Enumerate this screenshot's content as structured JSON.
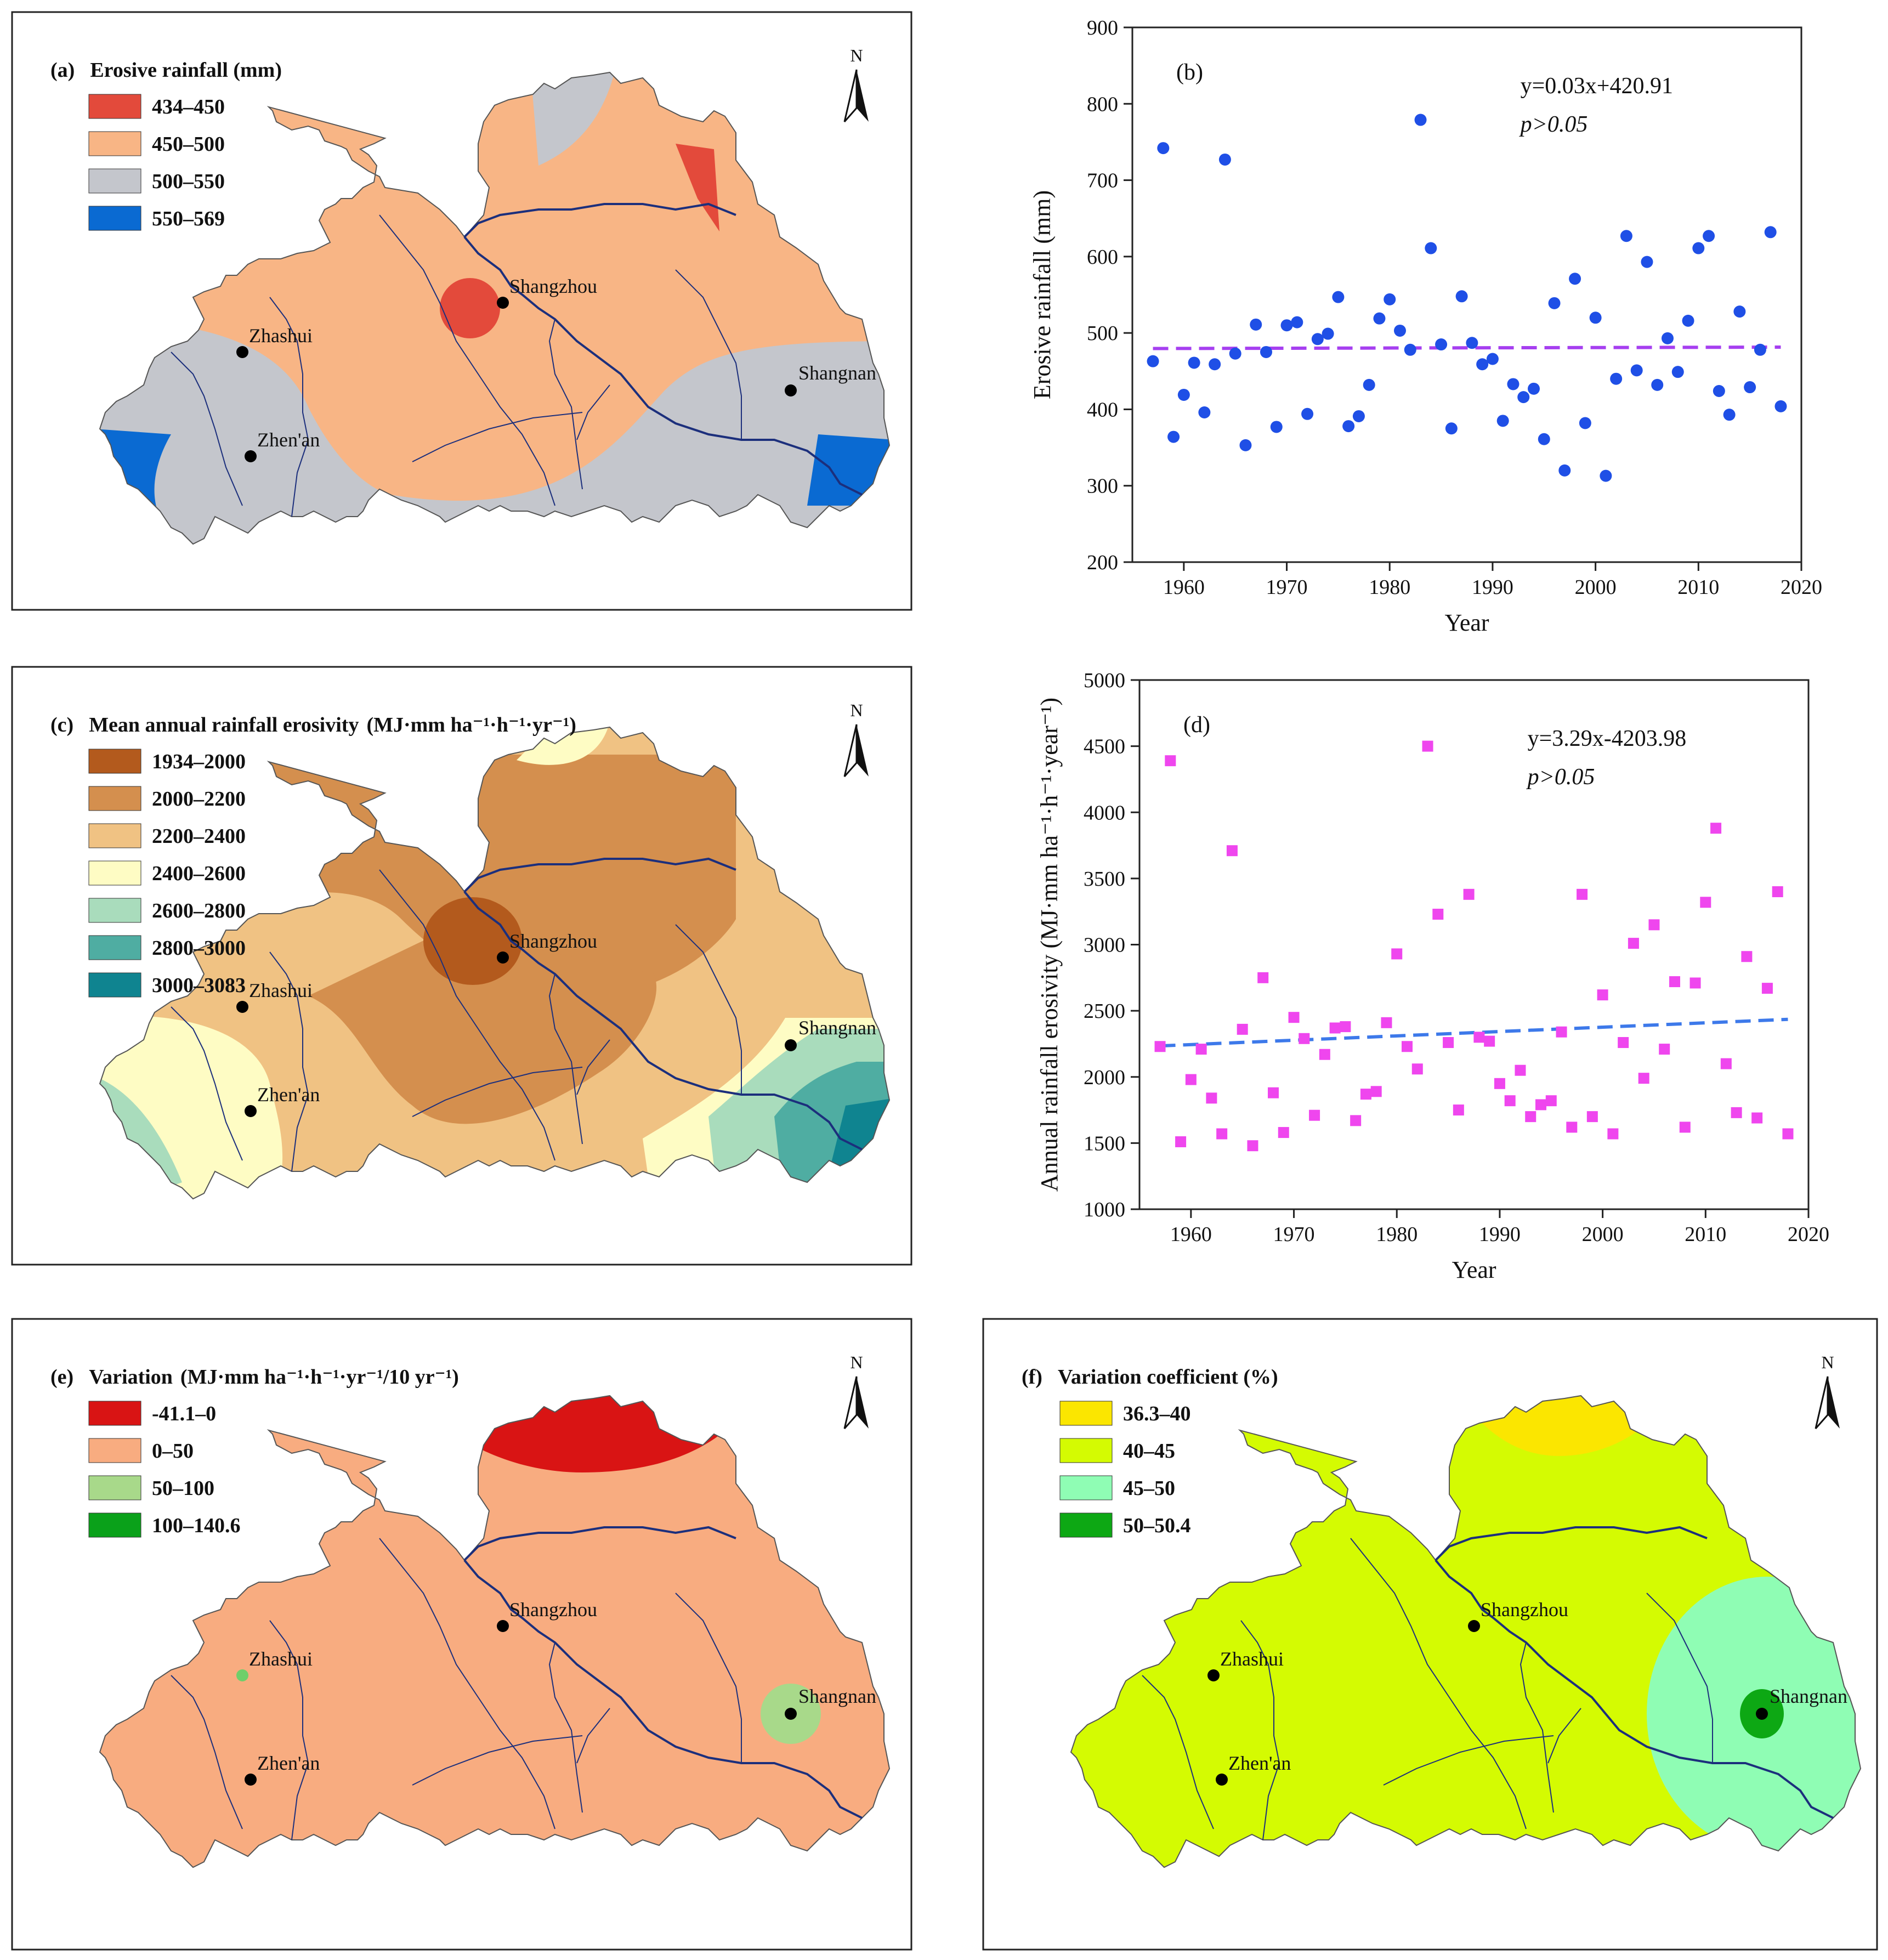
{
  "maps": [
    {
      "panel": "(a)",
      "title": "Erosive rainfall (mm)",
      "unit_title": "",
      "legend": [
        {
          "label": "434–450",
          "color": "#e34a3b"
        },
        {
          "label": "450–500",
          "color": "#f8b585"
        },
        {
          "label": "500–550",
          "color": "#c4c6cc"
        },
        {
          "label": "550–569",
          "color": "#0a6ad2"
        }
      ],
      "cities": [
        "Shangzhou",
        "Zhashui",
        "Zhen'an",
        "Shangnan"
      ],
      "north": "N"
    },
    {
      "panel": "(c)",
      "title": "Mean annual rainfall erosivity",
      "unit_title": "(MJ·mm ha⁻¹·h⁻¹·yr⁻¹)",
      "legend": [
        {
          "label": "1934–2000",
          "color": "#b35a1d"
        },
        {
          "label": "2000–2200",
          "color": "#d48f4e"
        },
        {
          "label": "2200–2400",
          "color": "#f0c283"
        },
        {
          "label": "2400–2600",
          "color": "#fefcc4"
        },
        {
          "label": "2600–2800",
          "color": "#a9dcbc"
        },
        {
          "label": "2800–3000",
          "color": "#4fada2"
        },
        {
          "label": "3000–3083",
          "color": "#0f8490"
        }
      ],
      "cities": [
        "Shangzhou",
        "Zhashui",
        "Zhen'an",
        "Shangnan"
      ],
      "north": "N"
    },
    {
      "panel": "(e)",
      "title": "Variation",
      "unit_title": "(MJ·mm ha⁻¹·h⁻¹·yr⁻¹/10 yr⁻¹)",
      "legend": [
        {
          "label": "-41.1–0",
          "color": "#d91414"
        },
        {
          "label": "0–50",
          "color": "#f8ac80"
        },
        {
          "label": "50–100",
          "color": "#a8d98a"
        },
        {
          "label": "100–140.6",
          "color": "#0aa11a"
        }
      ],
      "cities": [
        "Shangzhou",
        "Zhashui",
        "Zhen'an",
        "Shangnan"
      ],
      "north": "N"
    },
    {
      "panel": "(f)",
      "title": "Variation coefficient (%)",
      "unit_title": "",
      "legend": [
        {
          "label": "36.3–40",
          "color": "#fbe600"
        },
        {
          "label": "40–45",
          "color": "#d4fb02"
        },
        {
          "label": "45–50",
          "color": "#8ffdb4"
        },
        {
          "label": "50–50.4",
          "color": "#0da814"
        }
      ],
      "cities": [
        "Shangzhou",
        "Zhashui",
        "Zhen'an",
        "Shangnan"
      ],
      "north": "N"
    }
  ],
  "chart_data": [
    {
      "panel": "(b)",
      "type": "scatter",
      "xlabel": "Year",
      "ylabel": "Erosive rainfall (mm)",
      "xlim": [
        1955,
        2020
      ],
      "ylim": [
        200,
        900
      ],
      "xticks": [
        1960,
        1970,
        1980,
        1990,
        2000,
        2010,
        2020
      ],
      "yticks": [
        200,
        300,
        400,
        500,
        600,
        700,
        800,
        900
      ],
      "marker": "circle",
      "marker_color": "#1f4fe6",
      "trend_color": "#a63ff0",
      "equation": "y=0.03x+420.91",
      "significance": "p>0.05",
      "trend": {
        "slope": 0.03,
        "intercept": 420.91
      },
      "x": [
        1957,
        1958,
        1959,
        1960,
        1961,
        1962,
        1963,
        1964,
        1965,
        1966,
        1967,
        1968,
        1969,
        1970,
        1971,
        1972,
        1973,
        1974,
        1975,
        1976,
        1977,
        1978,
        1979,
        1980,
        1981,
        1982,
        1983,
        1984,
        1985,
        1986,
        1987,
        1988,
        1989,
        1990,
        1991,
        1992,
        1993,
        1994,
        1995,
        1996,
        1997,
        1998,
        1999,
        2000,
        2001,
        2002,
        2003,
        2004,
        2005,
        2006,
        2007,
        2008,
        2009,
        2010,
        2011,
        2012,
        2013,
        2014,
        2015,
        2016,
        2017,
        2018
      ],
      "y": [
        463,
        742,
        364,
        419,
        461,
        396,
        459,
        727,
        473,
        353,
        511,
        475,
        377,
        510,
        514,
        394,
        492,
        499,
        547,
        378,
        391,
        432,
        519,
        544,
        503,
        478,
        779,
        611,
        485,
        375,
        548,
        487,
        459,
        466,
        385,
        433,
        416,
        427,
        361,
        539,
        320,
        571,
        382,
        520,
        313,
        440,
        627,
        451,
        593,
        432,
        493,
        449,
        516,
        611,
        627,
        424,
        393,
        528,
        429,
        478,
        632,
        404
      ]
    },
    {
      "panel": "(d)",
      "type": "scatter",
      "xlabel": "Year",
      "ylabel": "Annual rainfall erosivity (MJ·mm ha⁻¹·h⁻¹·year⁻¹)",
      "xlim": [
        1955,
        2020
      ],
      "ylim": [
        1000,
        5000
      ],
      "xticks": [
        1960,
        1970,
        1980,
        1990,
        2000,
        2010,
        2020
      ],
      "yticks": [
        1000,
        1500,
        2000,
        2500,
        3000,
        3500,
        4000,
        4500,
        5000
      ],
      "marker": "square",
      "marker_color": "#ef46ee",
      "trend_color": "#3d79ea",
      "equation": "y=3.29x-4203.98",
      "significance": "p>0.05",
      "trend": {
        "slope": 3.29,
        "intercept": -4203.98
      },
      "x": [
        1957,
        1958,
        1959,
        1960,
        1961,
        1962,
        1963,
        1964,
        1965,
        1966,
        1967,
        1968,
        1969,
        1970,
        1971,
        1972,
        1973,
        1974,
        1975,
        1976,
        1977,
        1978,
        1979,
        1980,
        1981,
        1982,
        1983,
        1984,
        1985,
        1986,
        1987,
        1988,
        1989,
        1990,
        1991,
        1992,
        1993,
        1994,
        1995,
        1996,
        1997,
        1998,
        1999,
        2000,
        2001,
        2002,
        2003,
        2004,
        2005,
        2006,
        2007,
        2008,
        2009,
        2010,
        2011,
        2012,
        2013,
        2014,
        2015,
        2016,
        2017,
        2018
      ],
      "y": [
        2230,
        4390,
        1510,
        1980,
        2210,
        1840,
        1570,
        3710,
        2360,
        1480,
        2750,
        1880,
        1580,
        2450,
        2290,
        1710,
        2170,
        2370,
        2380,
        1670,
        1870,
        1890,
        2410,
        2930,
        2230,
        2060,
        4500,
        3230,
        2260,
        1750,
        3380,
        2300,
        2270,
        1950,
        1820,
        2050,
        1700,
        1790,
        1820,
        2340,
        1620,
        3380,
        1700,
        2620,
        1570,
        2260,
        3010,
        1990,
        3150,
        2210,
        2720,
        1620,
        2710,
        3320,
        3880,
        2100,
        1730,
        2910,
        1690,
        2670,
        3400,
        1570
      ]
    }
  ]
}
